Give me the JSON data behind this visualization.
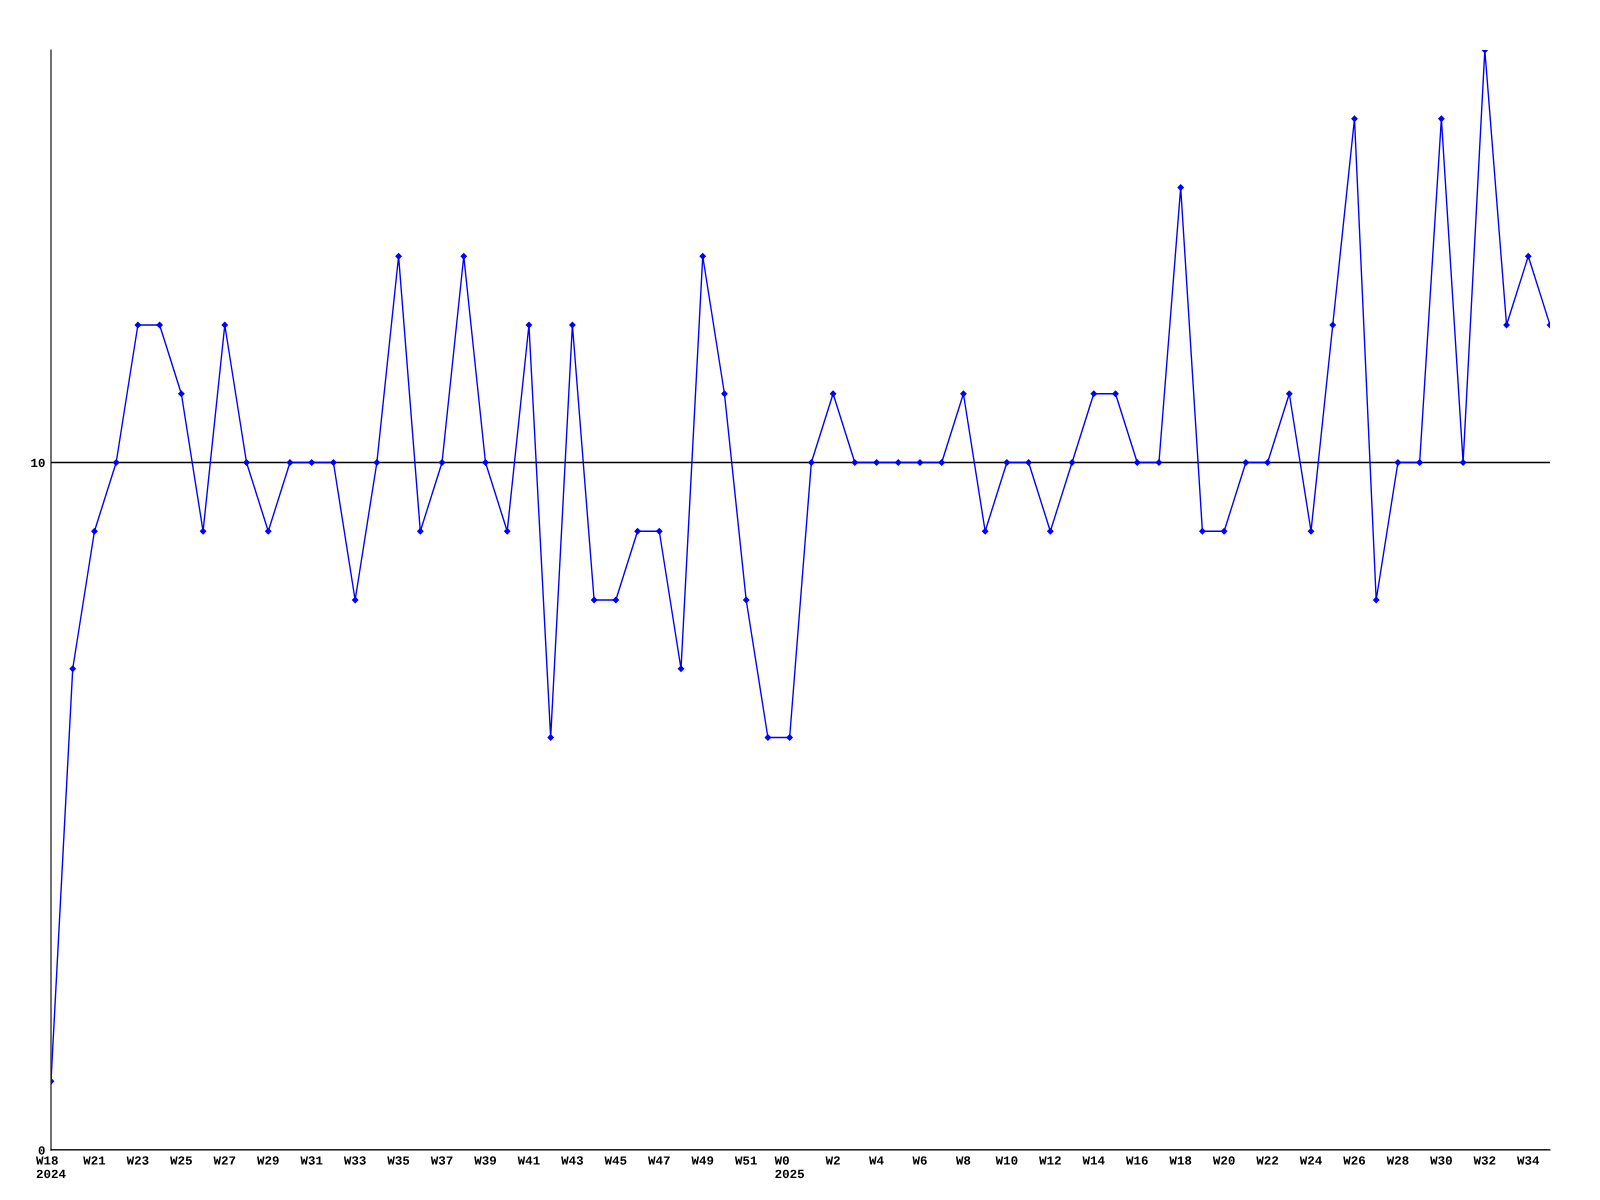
{
  "chart_data": {
    "type": "line",
    "categories": [
      "W18\n2024",
      null,
      "W21",
      null,
      "W23",
      null,
      "W25",
      null,
      "W27",
      null,
      "W29",
      null,
      "W31",
      null,
      "W33",
      null,
      "W35",
      null,
      "W37",
      null,
      "W39",
      null,
      "W41",
      null,
      "W43",
      null,
      "W45",
      null,
      "W47",
      null,
      "W49",
      null,
      "W51",
      null,
      "W0\n2025",
      null,
      "W2",
      null,
      "W4",
      null,
      "W6",
      null,
      "W8",
      null,
      "W10",
      null,
      "W12",
      null,
      "W14",
      null,
      "W16",
      null,
      "W18",
      null,
      "W20",
      null,
      "W22",
      null,
      "W24",
      null,
      "W26",
      null,
      "W28",
      null,
      "W30",
      null,
      "W32",
      null,
      "W34",
      null
    ],
    "series": [
      {
        "color": "#0000ff",
        "values": [
          1,
          7,
          9,
          10,
          12,
          12,
          11,
          9,
          12,
          10,
          9,
          10,
          10,
          10,
          8,
          10,
          13,
          9,
          10,
          13,
          10,
          9,
          12,
          6,
          12,
          8,
          8,
          9,
          9,
          7,
          13,
          11,
          8,
          6,
          6,
          10,
          11,
          10,
          10,
          10,
          10,
          10,
          11,
          9,
          10,
          10,
          9,
          10,
          11,
          11,
          10,
          10,
          14,
          9,
          9,
          10,
          10,
          11,
          9,
          12,
          15,
          8,
          10,
          10,
          15,
          10,
          16,
          12,
          13,
          12
        ]
      }
    ],
    "ylim": [
      0,
      16
    ],
    "yticks": [
      0,
      10
    ],
    "grid": "y",
    "marker": "diamond",
    "line_style": "solid"
  }
}
